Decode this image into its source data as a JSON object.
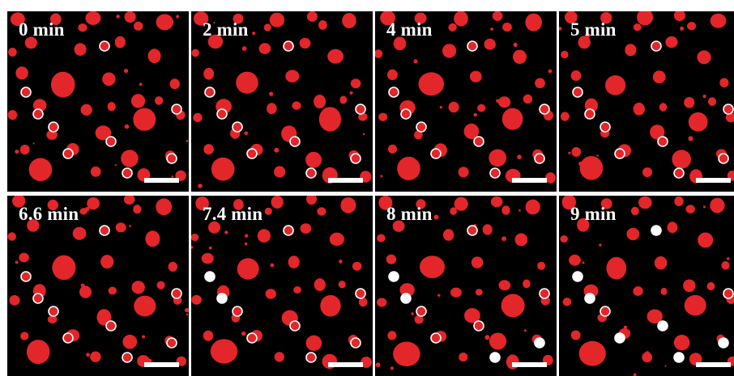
{
  "figure": {
    "panels": [
      {
        "label": "0 min",
        "variant": 0,
        "filled_markers": []
      },
      {
        "label": "2 min",
        "variant": 1,
        "filled_markers": []
      },
      {
        "label": "4 min",
        "variant": 2,
        "filled_markers": []
      },
      {
        "label": "5 min",
        "variant": 3,
        "filled_markers": []
      },
      {
        "label": "6.6 min",
        "variant": 4,
        "filled_markers": []
      },
      {
        "label": "7.4 min",
        "variant": 5,
        "filled_markers": [
          1,
          2
        ]
      },
      {
        "label": "8 min",
        "variant": 6,
        "filled_markers": [
          1,
          2,
          7,
          8
        ]
      },
      {
        "label": "9 min",
        "variant": 7,
        "filled_markers": [
          0,
          1,
          2,
          5,
          6,
          7,
          8
        ]
      }
    ]
  },
  "colors": {
    "background": "#000000",
    "droplet": "#e3262a",
    "marker": "#ffffff",
    "separator": "#ffffff"
  }
}
